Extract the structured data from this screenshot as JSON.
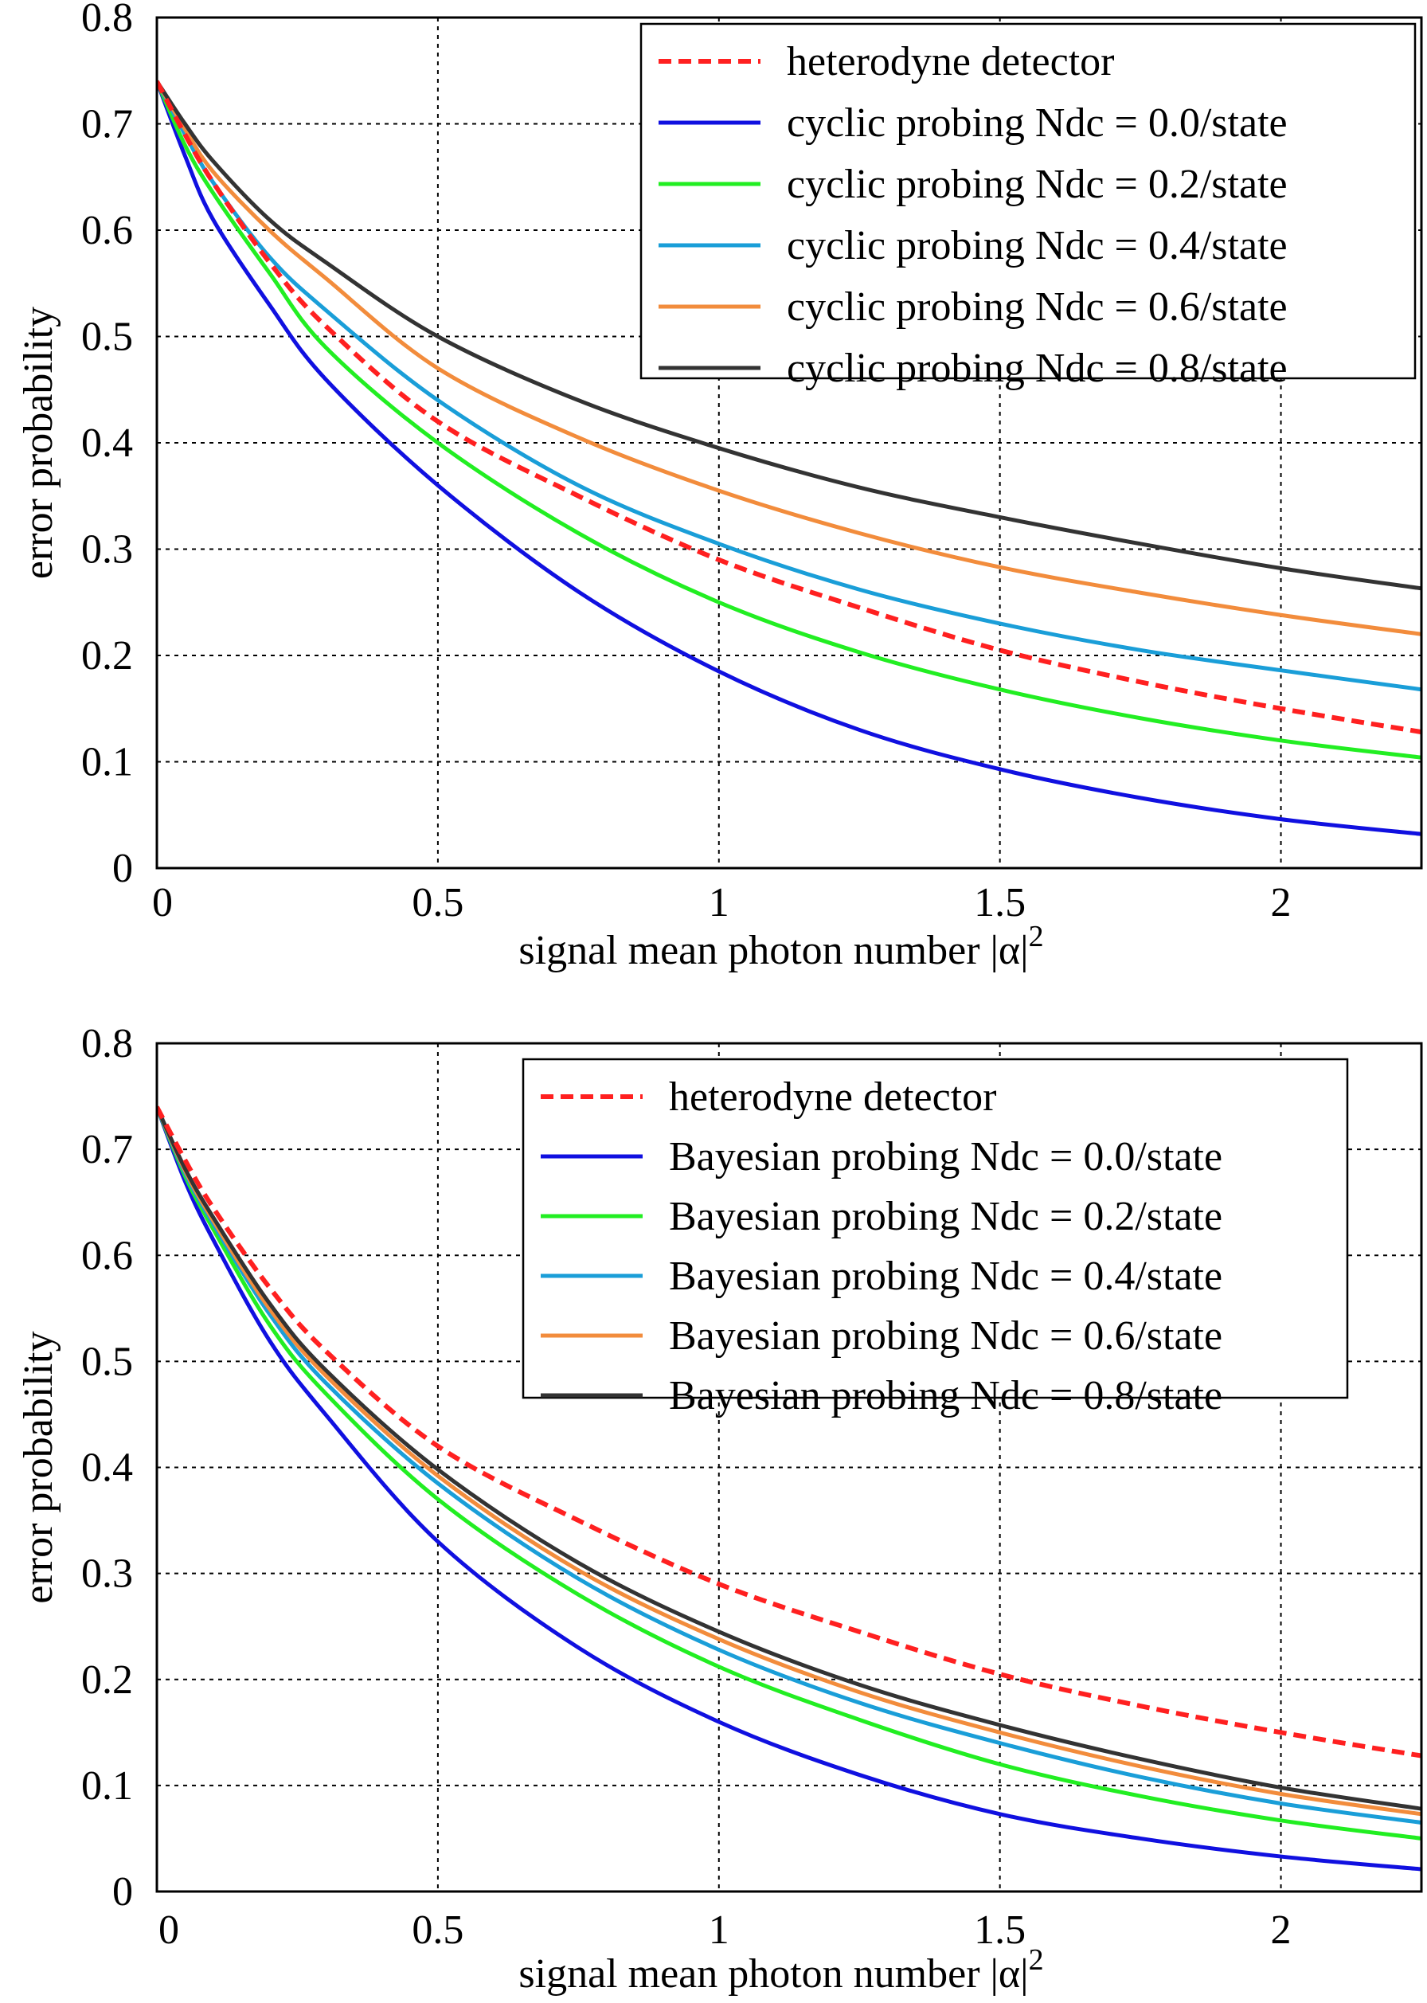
{
  "colors": {
    "heterodyne": "#ff2020",
    "n00": "#1010e0",
    "n02": "#22ee22",
    "n04": "#1a9ed8",
    "n06": "#f28c3c",
    "n08": "#333333"
  },
  "chart_data": [
    {
      "type": "line",
      "title": "",
      "xlabel": "signal mean photon number |α|",
      "xlabel_superscript": "2",
      "ylabel": "error probability",
      "xlim": [
        0,
        2.25
      ],
      "ylim": [
        0,
        0.8
      ],
      "x_ticks": [
        0,
        0.5,
        1,
        1.5,
        2
      ],
      "x_tick_labels": [
        "0",
        "0.5",
        "1",
        "1.5",
        "2"
      ],
      "y_ticks": [
        0,
        0.1,
        0.2,
        0.3,
        0.4,
        0.5,
        0.6,
        0.7,
        0.8
      ],
      "y_tick_labels": [
        "0",
        "0.1",
        "0.2",
        "0.3",
        "0.4",
        "0.5",
        "0.6",
        "0.7",
        "0.8"
      ],
      "grid": true,
      "legend_position": "top-right",
      "x": [
        0,
        0.05,
        0.1,
        0.2,
        0.3,
        0.5,
        0.75,
        1.0,
        1.25,
        1.5,
        1.75,
        2.0,
        2.25
      ],
      "series": [
        {
          "name": "heterodyne detector",
          "color_key": "heterodyne",
          "dash": true,
          "values": [
            0.74,
            0.69,
            0.645,
            0.57,
            0.51,
            0.42,
            0.35,
            0.29,
            0.245,
            0.205,
            0.175,
            0.15,
            0.128
          ]
        },
        {
          "name": "cyclic probing Ndc = 0.0/state",
          "color_key": "n00",
          "dash": false,
          "values": [
            0.74,
            0.67,
            0.61,
            0.53,
            0.46,
            0.36,
            0.26,
            0.185,
            0.13,
            0.093,
            0.066,
            0.046,
            0.032
          ]
        },
        {
          "name": "cyclic probing Ndc = 0.2/state",
          "color_key": "n02",
          "dash": false,
          "values": [
            0.74,
            0.68,
            0.635,
            0.56,
            0.49,
            0.4,
            0.315,
            0.25,
            0.203,
            0.168,
            0.141,
            0.12,
            0.104
          ]
        },
        {
          "name": "cyclic probing Ndc = 0.4/state",
          "color_key": "n04",
          "dash": false,
          "values": [
            0.74,
            0.69,
            0.645,
            0.575,
            0.525,
            0.44,
            0.36,
            0.305,
            0.262,
            0.23,
            0.205,
            0.186,
            0.168
          ]
        },
        {
          "name": "cyclic probing Ndc = 0.6/state",
          "color_key": "n06",
          "dash": false,
          "values": [
            0.74,
            0.695,
            0.655,
            0.6,
            0.555,
            0.47,
            0.405,
            0.355,
            0.315,
            0.283,
            0.259,
            0.238,
            0.22
          ]
        },
        {
          "name": "cyclic probing Ndc = 0.8/state",
          "color_key": "n08",
          "dash": false,
          "values": [
            0.74,
            0.7,
            0.665,
            0.61,
            0.57,
            0.5,
            0.44,
            0.395,
            0.358,
            0.33,
            0.305,
            0.282,
            0.263
          ]
        }
      ]
    },
    {
      "type": "line",
      "title": "",
      "xlabel": "signal mean photon number |α|",
      "xlabel_superscript": "2",
      "ylabel": "error probability",
      "xlim": [
        0,
        2.25
      ],
      "ylim": [
        0,
        0.8
      ],
      "x_ticks": [
        0,
        0.5,
        1,
        1.5,
        2
      ],
      "x_tick_labels": [
        "0",
        "0.5",
        "1",
        "1.5",
        "2"
      ],
      "y_ticks": [
        0,
        0.1,
        0.2,
        0.3,
        0.4,
        0.5,
        0.6,
        0.7,
        0.8
      ],
      "y_tick_labels": [
        "0",
        "0.1",
        "0.2",
        "0.3",
        "0.4",
        "0.5",
        "0.6",
        "0.7",
        "0.8"
      ],
      "grid": true,
      "legend_position": "top-right",
      "x": [
        0,
        0.05,
        0.1,
        0.2,
        0.3,
        0.5,
        0.75,
        1.0,
        1.25,
        1.5,
        1.75,
        2.0,
        2.25
      ],
      "series": [
        {
          "name": "heterodyne detector",
          "color_key": "heterodyne",
          "dash": true,
          "values": [
            0.74,
            0.69,
            0.645,
            0.57,
            0.51,
            0.42,
            0.35,
            0.29,
            0.245,
            0.205,
            0.175,
            0.15,
            0.128
          ]
        },
        {
          "name": "Bayesian probing Ndc = 0.0/state",
          "color_key": "n00",
          "dash": false,
          "values": [
            0.74,
            0.67,
            0.615,
            0.52,
            0.45,
            0.33,
            0.23,
            0.16,
            0.11,
            0.073,
            0.05,
            0.033,
            0.021
          ]
        },
        {
          "name": "Bayesian probing Ndc = 0.2/state",
          "color_key": "n02",
          "dash": false,
          "values": [
            0.74,
            0.675,
            0.625,
            0.535,
            0.47,
            0.37,
            0.28,
            0.212,
            0.162,
            0.12,
            0.09,
            0.067,
            0.05
          ]
        },
        {
          "name": "Bayesian probing Ndc = 0.4/state",
          "color_key": "n04",
          "dash": false,
          "values": [
            0.74,
            0.678,
            0.63,
            0.545,
            0.48,
            0.385,
            0.295,
            0.228,
            0.178,
            0.14,
            0.108,
            0.083,
            0.065
          ]
        },
        {
          "name": "Bayesian probing Ndc = 0.6/state",
          "color_key": "n06",
          "dash": false,
          "values": [
            0.74,
            0.68,
            0.633,
            0.55,
            0.487,
            0.392,
            0.303,
            0.238,
            0.188,
            0.15,
            0.118,
            0.092,
            0.073
          ]
        },
        {
          "name": "Bayesian probing Ndc = 0.8/state",
          "color_key": "n08",
          "dash": false,
          "values": [
            0.74,
            0.682,
            0.636,
            0.555,
            0.492,
            0.398,
            0.31,
            0.245,
            0.195,
            0.157,
            0.125,
            0.098,
            0.078
          ]
        }
      ]
    }
  ]
}
